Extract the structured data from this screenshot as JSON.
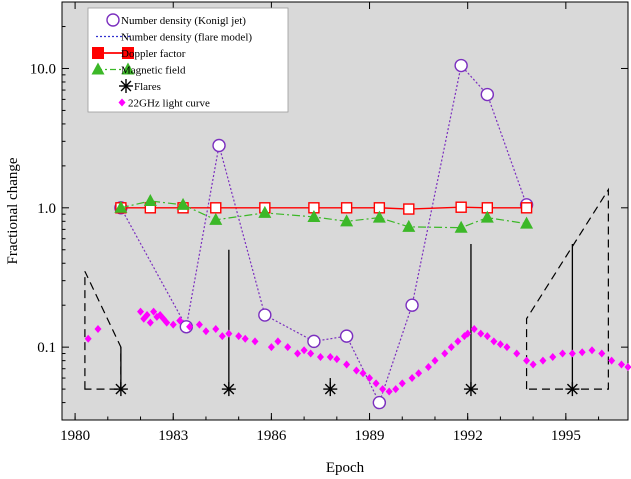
{
  "chart_data": {
    "type": "scatter",
    "xlabel": "Epoch",
    "ylabel": "Fractional change",
    "xlim": [
      1979.6,
      1996.9
    ],
    "ylim": [
      0.03,
      30
    ],
    "yscale": "log",
    "grid": false,
    "legend_position": "top-left",
    "background": "#d9d9d9",
    "xticks": [
      1980,
      1983,
      1986,
      1989,
      1992,
      1995
    ],
    "xtick_labels": [
      "1980",
      "1983",
      "1986",
      "1989",
      "1992",
      "1995"
    ],
    "yticks": [
      0.1,
      1.0,
      10.0
    ],
    "ytick_labels": [
      "0.1",
      "1.0",
      "10.0"
    ],
    "series": [
      {
        "name": "Number density (Konigl jet)",
        "style": "open-circle-dotted",
        "color": "#7b2fbf",
        "x": [
          1981.4,
          1983.4,
          1984.4,
          1985.8,
          1987.3,
          1988.3,
          1989.3,
          1990.3,
          1991.8,
          1992.6,
          1993.8
        ],
        "y": [
          1.0,
          0.14,
          2.8,
          0.17,
          0.11,
          0.12,
          0.04,
          0.2,
          10.5,
          6.5,
          1.05
        ]
      },
      {
        "name": "Number density (flare model)",
        "style": "dotted-line",
        "color": "#3030d0",
        "x": [],
        "y": []
      },
      {
        "name": "Doppler factor",
        "style": "open-square-line",
        "color": "#ff0000",
        "x": [
          1981.4,
          1982.3,
          1983.3,
          1984.3,
          1985.8,
          1987.3,
          1988.3,
          1989.3,
          1990.2,
          1991.8,
          1992.6,
          1993.8
        ],
        "y": [
          1.0,
          1.0,
          1.0,
          1.0,
          1.0,
          1.0,
          1.0,
          1.0,
          0.98,
          1.01,
          1.0,
          1.0
        ]
      },
      {
        "name": "Magnetic field",
        "style": "filled-triangle-dashdot",
        "color": "#3cb828",
        "x": [
          1981.4,
          1982.3,
          1983.3,
          1984.3,
          1985.8,
          1987.3,
          1988.3,
          1989.3,
          1990.2,
          1991.8,
          1992.6,
          1993.8
        ],
        "y": [
          1.0,
          1.12,
          1.05,
          0.82,
          0.92,
          0.86,
          0.8,
          0.85,
          0.73,
          0.72,
          0.85,
          0.77
        ]
      },
      {
        "name": "Flares",
        "style": "asterisk",
        "color": "#000000",
        "x": [
          1981.4,
          1984.7,
          1987.8,
          1992.1,
          1995.2
        ],
        "y": [
          0.05,
          0.05,
          0.05,
          0.05,
          0.05
        ]
      },
      {
        "name": "22GHz light curve",
        "style": "filled-diamond",
        "color": "#ff00ff",
        "x": [
          1980.4,
          1980.7,
          1982.0,
          1982.1,
          1982.2,
          1982.3,
          1982.4,
          1982.5,
          1982.6,
          1982.7,
          1982.8,
          1983.0,
          1983.2,
          1983.5,
          1983.8,
          1984.0,
          1984.3,
          1984.5,
          1984.7,
          1985.0,
          1985.2,
          1985.5,
          1986.0,
          1986.2,
          1986.5,
          1986.8,
          1987.0,
          1987.2,
          1987.5,
          1987.8,
          1988.0,
          1988.3,
          1988.6,
          1988.8,
          1989.0,
          1989.2,
          1989.4,
          1989.6,
          1989.8,
          1990.0,
          1990.3,
          1990.5,
          1990.8,
          1991.0,
          1991.3,
          1991.5,
          1991.7,
          1991.9,
          1992.0,
          1992.2,
          1992.4,
          1992.6,
          1992.8,
          1993.0,
          1993.2,
          1993.5,
          1993.8,
          1994.0,
          1994.3,
          1994.6,
          1994.9,
          1995.2,
          1995.5,
          1995.8,
          1996.1,
          1996.4,
          1996.7,
          1996.9
        ],
        "y": [
          0.115,
          0.135,
          0.18,
          0.16,
          0.17,
          0.15,
          0.18,
          0.165,
          0.17,
          0.16,
          0.15,
          0.145,
          0.155,
          0.14,
          0.145,
          0.13,
          0.135,
          0.12,
          0.125,
          0.12,
          0.115,
          0.11,
          0.1,
          0.11,
          0.1,
          0.09,
          0.095,
          0.09,
          0.085,
          0.085,
          0.082,
          0.075,
          0.068,
          0.065,
          0.06,
          0.055,
          0.05,
          0.048,
          0.05,
          0.055,
          0.06,
          0.065,
          0.072,
          0.08,
          0.09,
          0.1,
          0.11,
          0.12,
          0.125,
          0.135,
          0.125,
          0.12,
          0.11,
          0.105,
          0.1,
          0.09,
          0.08,
          0.075,
          0.08,
          0.085,
          0.09,
          0.09,
          0.092,
          0.095,
          0.09,
          0.08,
          0.075,
          0.072
        ]
      }
    ],
    "flare_triangles": [
      {
        "x": [
          1980.3,
          1980.3,
          1981.4,
          1981.4
        ],
        "y": [
          0.05,
          0.35,
          0.1,
          0.05
        ]
      },
      {
        "x": [
          1993.8,
          1993.8,
          1996.3,
          1996.3
        ],
        "y": [
          0.05,
          0.16,
          1.35,
          0.05
        ]
      }
    ],
    "flare_bars": [
      {
        "x": 1981.4,
        "y": 0.1
      },
      {
        "x": 1984.7,
        "y": 0.5
      },
      {
        "x": 1987.8,
        "y": 0.06
      },
      {
        "x": 1992.1,
        "y": 0.55
      },
      {
        "x": 1995.2,
        "y": 0.55
      }
    ]
  }
}
